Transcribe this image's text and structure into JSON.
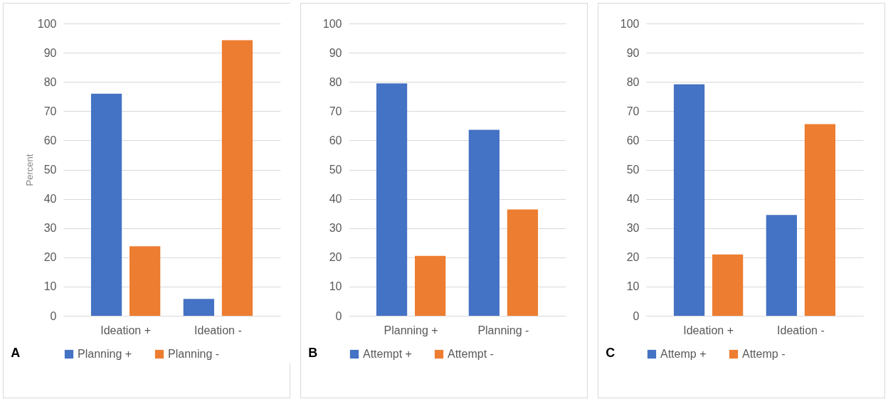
{
  "chart_data": [
    {
      "type": "bar",
      "ylabel": "Percent",
      "categories": [
        "Ideation +",
        "Ideation -"
      ],
      "series": [
        {
          "name": "Planning +",
          "color": "#4472c4",
          "values": [
            76,
            5.8
          ]
        },
        {
          "name": "Planning -",
          "color": "#ed7d31",
          "values": [
            23.8,
            94.3
          ]
        }
      ],
      "ylim": [
        0,
        100
      ],
      "yticks": [
        0,
        10,
        20,
        30,
        40,
        50,
        60,
        70,
        80,
        90,
        100
      ],
      "grid": "y",
      "legend": "bottom",
      "annotations": [
        "A"
      ]
    },
    {
      "type": "bar",
      "categories": [
        "Planning +",
        "Planning -"
      ],
      "series": [
        {
          "name": "Attempt +",
          "color": "#4472c4",
          "values": [
            79.5,
            63.6
          ]
        },
        {
          "name": "Attempt -",
          "color": "#ed7d31",
          "values": [
            20.5,
            36.4
          ]
        }
      ],
      "ylim": [
        0,
        100
      ],
      "yticks": [
        0,
        10,
        20,
        30,
        40,
        50,
        60,
        70,
        80,
        90,
        100
      ],
      "grid": "y",
      "legend": "bottom",
      "annotations": [
        "B"
      ]
    },
    {
      "type": "bar",
      "categories": [
        "Ideation +",
        "Ideation -"
      ],
      "series": [
        {
          "name": "Attemp +",
          "color": "#4472c4",
          "values": [
            79.2,
            34.5
          ]
        },
        {
          "name": "Attemp -",
          "color": "#ed7d31",
          "values": [
            21,
            65.6
          ]
        }
      ],
      "ylim": [
        0,
        100
      ],
      "yticks": [
        0,
        10,
        20,
        30,
        40,
        50,
        60,
        70,
        80,
        90,
        100
      ],
      "grid": "y",
      "legend": "bottom",
      "annotations": [
        "C"
      ]
    }
  ]
}
